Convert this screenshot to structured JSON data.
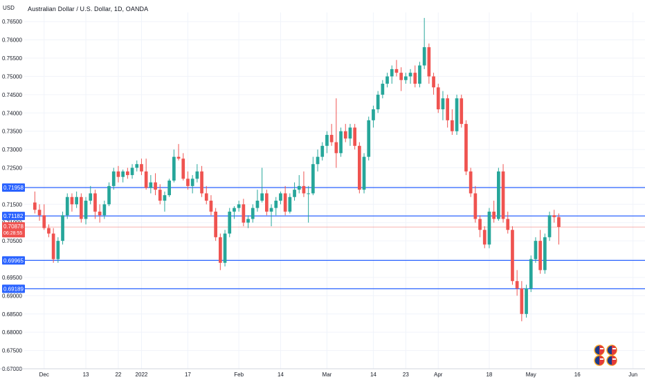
{
  "header": {
    "currency": "USD",
    "title": "Australian Dollar / U.S. Dollar, 1D, OANDA"
  },
  "chart_data": {
    "type": "candlestick",
    "ylim": [
      0.67,
      0.7675
    ],
    "y_ticks": [
      "0.76500",
      "0.76000",
      "0.75500",
      "0.75000",
      "0.74500",
      "0.74000",
      "0.73500",
      "0.73000",
      "0.72500",
      "0.72000",
      "0.71500",
      "0.71000",
      "0.70500",
      "0.70000",
      "0.69500",
      "0.69000",
      "0.68500",
      "0.68000",
      "0.67500",
      "0.67000"
    ],
    "x_tick_labels": [
      {
        "label": "Dec",
        "bar": 2
      },
      {
        "label": "13",
        "bar": 11
      },
      {
        "label": "22",
        "bar": 18
      },
      {
        "label": "2022",
        "bar": 23
      },
      {
        "label": "17",
        "bar": 33
      },
      {
        "label": "Feb",
        "bar": 44
      },
      {
        "label": "14",
        "bar": 53
      },
      {
        "label": "Mar",
        "bar": 63
      },
      {
        "label": "14",
        "bar": 73
      },
      {
        "label": "23",
        "bar": 80
      },
      {
        "label": "Apr",
        "bar": 87
      },
      {
        "label": "18",
        "bar": 98
      },
      {
        "label": "May",
        "bar": 107
      },
      {
        "label": "16",
        "bar": 117
      },
      {
        "label": "Jun",
        "bar": 129
      }
    ],
    "levels": [
      {
        "label": "0.71958",
        "value": 0.71958,
        "color": "#2962ff"
      },
      {
        "label": "0.71182",
        "value": 0.71182,
        "color": "#2962ff"
      },
      {
        "label": "0.69965",
        "value": 0.69965,
        "color": "#2962ff"
      },
      {
        "label": "0.69189",
        "value": 0.69189,
        "color": "#2962ff"
      }
    ],
    "last_price": {
      "label": "0.70878",
      "countdown": "06:28:55",
      "value": 0.70878,
      "color": "#ef5350"
    },
    "colors": {
      "up": "#26a69a",
      "down": "#ef5350",
      "grid": "#f0f3fa",
      "axis": "#d1d4dc"
    },
    "grid": true,
    "candles": [
      [
        0.7155,
        0.7185,
        0.7125,
        0.7135
      ],
      [
        0.7135,
        0.715,
        0.7105,
        0.712
      ],
      [
        0.712,
        0.715,
        0.708,
        0.7085
      ],
      [
        0.7085,
        0.7095,
        0.706,
        0.707
      ],
      [
        0.707,
        0.7085,
        0.699,
        0.7
      ],
      [
        0.7,
        0.706,
        0.699,
        0.705
      ],
      [
        0.705,
        0.713,
        0.704,
        0.712
      ],
      [
        0.712,
        0.718,
        0.711,
        0.717
      ],
      [
        0.717,
        0.718,
        0.713,
        0.715
      ],
      [
        0.715,
        0.7185,
        0.714,
        0.717
      ],
      [
        0.717,
        0.718,
        0.71,
        0.711
      ],
      [
        0.711,
        0.717,
        0.7095,
        0.716
      ],
      [
        0.716,
        0.72,
        0.715,
        0.718
      ],
      [
        0.718,
        0.719,
        0.711,
        0.713
      ],
      [
        0.713,
        0.715,
        0.71,
        0.712
      ],
      [
        0.712,
        0.716,
        0.711,
        0.715
      ],
      [
        0.715,
        0.721,
        0.7145,
        0.72
      ],
      [
        0.72,
        0.725,
        0.719,
        0.724
      ],
      [
        0.724,
        0.7255,
        0.721,
        0.7225
      ],
      [
        0.7225,
        0.7245,
        0.721,
        0.724
      ],
      [
        0.724,
        0.725,
        0.722,
        0.723
      ],
      [
        0.723,
        0.726,
        0.722,
        0.725
      ],
      [
        0.725,
        0.727,
        0.724,
        0.726
      ],
      [
        0.726,
        0.7275,
        0.723,
        0.724
      ],
      [
        0.724,
        0.7275,
        0.719,
        0.7195
      ],
      [
        0.7195,
        0.723,
        0.718,
        0.721
      ],
      [
        0.721,
        0.7235,
        0.7175,
        0.719
      ],
      [
        0.719,
        0.7205,
        0.715,
        0.716
      ],
      [
        0.716,
        0.7185,
        0.713,
        0.7175
      ],
      [
        0.7175,
        0.722,
        0.717,
        0.7215
      ],
      [
        0.7215,
        0.73,
        0.721,
        0.728
      ],
      [
        0.728,
        0.7315,
        0.727,
        0.7275
      ],
      [
        0.7275,
        0.729,
        0.7215,
        0.722
      ],
      [
        0.722,
        0.724,
        0.719,
        0.72
      ],
      [
        0.72,
        0.723,
        0.718,
        0.722
      ],
      [
        0.722,
        0.726,
        0.721,
        0.724
      ],
      [
        0.724,
        0.7255,
        0.717,
        0.718
      ],
      [
        0.718,
        0.72,
        0.715,
        0.716
      ],
      [
        0.716,
        0.7175,
        0.712,
        0.713
      ],
      [
        0.713,
        0.714,
        0.705,
        0.706
      ],
      [
        0.706,
        0.707,
        0.697,
        0.699
      ],
      [
        0.699,
        0.708,
        0.698,
        0.707
      ],
      [
        0.707,
        0.714,
        0.706,
        0.713
      ],
      [
        0.713,
        0.7145,
        0.711,
        0.714
      ],
      [
        0.714,
        0.716,
        0.713,
        0.715
      ],
      [
        0.715,
        0.7165,
        0.709,
        0.71
      ],
      [
        0.71,
        0.712,
        0.7085,
        0.711
      ],
      [
        0.711,
        0.715,
        0.71,
        0.714
      ],
      [
        0.714,
        0.719,
        0.713,
        0.716
      ],
      [
        0.716,
        0.725,
        0.7155,
        0.718
      ],
      [
        0.718,
        0.719,
        0.712,
        0.713
      ],
      [
        0.713,
        0.715,
        0.709,
        0.714
      ],
      [
        0.714,
        0.717,
        0.712,
        0.716
      ],
      [
        0.716,
        0.7185,
        0.715,
        0.718
      ],
      [
        0.718,
        0.72,
        0.712,
        0.713
      ],
      [
        0.713,
        0.718,
        0.7125,
        0.717
      ],
      [
        0.717,
        0.721,
        0.716,
        0.719
      ],
      [
        0.719,
        0.723,
        0.718,
        0.72
      ],
      [
        0.72,
        0.724,
        0.717,
        0.718
      ],
      [
        0.718,
        0.72,
        0.71,
        0.718
      ],
      [
        0.718,
        0.728,
        0.7175,
        0.726
      ],
      [
        0.726,
        0.73,
        0.724,
        0.728
      ],
      [
        0.728,
        0.732,
        0.727,
        0.731
      ],
      [
        0.731,
        0.735,
        0.729,
        0.734
      ],
      [
        0.734,
        0.737,
        0.731,
        0.732
      ],
      [
        0.732,
        0.744,
        0.725,
        0.729
      ],
      [
        0.729,
        0.736,
        0.728,
        0.735
      ],
      [
        0.735,
        0.737,
        0.732,
        0.733
      ],
      [
        0.733,
        0.737,
        0.731,
        0.736
      ],
      [
        0.736,
        0.737,
        0.73,
        0.731
      ],
      [
        0.731,
        0.732,
        0.718,
        0.719
      ],
      [
        0.719,
        0.729,
        0.718,
        0.728
      ],
      [
        0.728,
        0.739,
        0.727,
        0.738
      ],
      [
        0.738,
        0.742,
        0.736,
        0.741
      ],
      [
        0.741,
        0.746,
        0.74,
        0.745
      ],
      [
        0.745,
        0.749,
        0.744,
        0.748
      ],
      [
        0.748,
        0.751,
        0.747,
        0.75
      ],
      [
        0.75,
        0.753,
        0.748,
        0.752
      ],
      [
        0.752,
        0.7545,
        0.75,
        0.751
      ],
      [
        0.751,
        0.7525,
        0.746,
        0.749
      ],
      [
        0.749,
        0.751,
        0.748,
        0.75
      ],
      [
        0.75,
        0.752,
        0.748,
        0.751
      ],
      [
        0.751,
        0.753,
        0.747,
        0.748
      ],
      [
        0.748,
        0.754,
        0.747,
        0.753
      ],
      [
        0.753,
        0.766,
        0.752,
        0.758
      ],
      [
        0.758,
        0.759,
        0.748,
        0.75
      ],
      [
        0.75,
        0.751,
        0.745,
        0.747
      ],
      [
        0.747,
        0.748,
        0.74,
        0.741
      ],
      [
        0.741,
        0.746,
        0.738,
        0.744
      ],
      [
        0.744,
        0.745,
        0.736,
        0.738
      ],
      [
        0.738,
        0.741,
        0.734,
        0.735
      ],
      [
        0.735,
        0.745,
        0.734,
        0.744
      ],
      [
        0.744,
        0.745,
        0.736,
        0.737
      ],
      [
        0.737,
        0.738,
        0.723,
        0.724
      ],
      [
        0.724,
        0.725,
        0.717,
        0.718
      ],
      [
        0.718,
        0.72,
        0.71,
        0.711
      ],
      [
        0.711,
        0.712,
        0.706,
        0.708
      ],
      [
        0.708,
        0.709,
        0.703,
        0.704
      ],
      [
        0.704,
        0.714,
        0.703,
        0.713
      ],
      [
        0.713,
        0.716,
        0.71,
        0.711
      ],
      [
        0.711,
        0.725,
        0.7105,
        0.724
      ],
      [
        0.724,
        0.726,
        0.71,
        0.711
      ],
      [
        0.711,
        0.713,
        0.707,
        0.708
      ],
      [
        0.708,
        0.709,
        0.693,
        0.694
      ],
      [
        0.694,
        0.697,
        0.69,
        0.692
      ],
      [
        0.692,
        0.694,
        0.683,
        0.685
      ],
      [
        0.685,
        0.693,
        0.684,
        0.692
      ],
      [
        0.692,
        0.701,
        0.691,
        0.7
      ],
      [
        0.7,
        0.706,
        0.699,
        0.705
      ],
      [
        0.705,
        0.708,
        0.696,
        0.697
      ],
      [
        0.697,
        0.707,
        0.696,
        0.706
      ],
      [
        0.706,
        0.713,
        0.705,
        0.712
      ],
      [
        0.712,
        0.7135,
        0.71,
        0.7115
      ],
      [
        0.7115,
        0.7125,
        0.704,
        0.7088
      ]
    ]
  }
}
